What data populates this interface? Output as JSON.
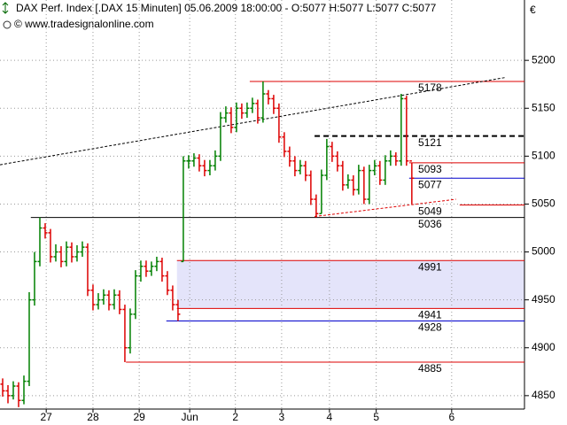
{
  "chart_data": {
    "type": "ohlc",
    "title": "DAX Perf. Index [.DAX  15 Minuten] 05.06.2009 18:00:00 - O:5077 H:5077 L:5077 C:5077",
    "subtitle": "© www.tradesignalonline.com",
    "currency": "€",
    "up_color": "#008000",
    "down_color": "#dd0000",
    "open": [
      4862,
      4855,
      4850,
      4860,
      4845,
      4865,
      4950,
      4990,
      5025,
      5020,
      4995,
      5000,
      4990,
      5005,
      4995,
      5000,
      5005,
      4960,
      4945,
      4950,
      4955,
      4945,
      4955,
      4940,
      4900,
      4935,
      4975,
      4985,
      4980,
      4985,
      4990,
      4975,
      4960,
      4945,
      4990,
      5095,
      5095,
      5098,
      5090,
      5085,
      5090,
      5100,
      5140,
      5145,
      5130,
      5150,
      5145,
      5150,
      5155,
      5140,
      5165,
      5160,
      5150,
      5120,
      5105,
      5095,
      5085,
      5090,
      5080,
      5055,
      5040,
      5080,
      5110,
      5100,
      5090,
      5070,
      5075,
      5065,
      5085,
      5055,
      5085,
      5090,
      5075,
      5095,
      5100,
      5095,
      5160,
      5095
    ],
    "high": [
      4868,
      4861,
      4865,
      4864,
      4871,
      4958,
      5000,
      5036,
      5030,
      5024,
      5008,
      5006,
      5011,
      5010,
      5007,
      5011,
      5009,
      4966,
      4957,
      4961,
      4960,
      4961,
      4960,
      4945,
      4941,
      4981,
      4991,
      4991,
      4990,
      4995,
      4994,
      4980,
      4965,
      4950,
      5100,
      5101,
      5103,
      5102,
      5096,
      5096,
      5106,
      5146,
      5152,
      5151,
      5156,
      5155,
      5156,
      5161,
      5159,
      5178,
      5169,
      5164,
      5155,
      5125,
      5110,
      5100,
      5096,
      5095,
      5085,
      5060,
      5086,
      5118,
      5115,
      5105,
      5095,
      5081,
      5080,
      5091,
      5089,
      5091,
      5096,
      5095,
      5101,
      5106,
      5104,
      5165,
      5163,
      5093
    ],
    "low": [
      4849,
      4842,
      4846,
      4838,
      4841,
      4860,
      4944,
      4985,
      5014,
      4989,
      4990,
      4984,
      4985,
      4989,
      4990,
      4995,
      4954,
      4939,
      4940,
      4945,
      4939,
      4940,
      4935,
      4885,
      4894,
      4930,
      4969,
      4974,
      4975,
      4980,
      4969,
      4955,
      4939,
      4928,
      4990,
      5087,
      5089,
      5084,
      5079,
      5080,
      5085,
      5095,
      5135,
      5124,
      5125,
      5139,
      5140,
      5145,
      5134,
      5135,
      5154,
      5144,
      5114,
      5099,
      5089,
      5079,
      5081,
      5074,
      5049,
      5036,
      5040,
      5075,
      5094,
      5084,
      5064,
      5066,
      5059,
      5060,
      5050,
      5050,
      5080,
      5070,
      5070,
      5090,
      5090,
      5090,
      5090,
      5050
    ],
    "close": [
      4855,
      4850,
      4860,
      4845,
      4865,
      4950,
      4990,
      5025,
      5020,
      4995,
      5000,
      4990,
      5005,
      4995,
      5000,
      5005,
      4960,
      4945,
      4950,
      4955,
      4945,
      4955,
      4940,
      4900,
      4935,
      4975,
      4985,
      4980,
      4985,
      4990,
      4975,
      4960,
      4945,
      4935,
      5095,
      5095,
      5098,
      5090,
      5085,
      5090,
      5100,
      5140,
      5145,
      5130,
      5150,
      5145,
      5150,
      5155,
      5140,
      5165,
      5160,
      5150,
      5120,
      5105,
      5095,
      5085,
      5090,
      5080,
      5055,
      5040,
      5080,
      5110,
      5100,
      5090,
      5070,
      5075,
      5065,
      5085,
      5055,
      5085,
      5090,
      5075,
      5095,
      5100,
      5095,
      5160,
      5095,
      5077
    ],
    "xlim": [
      -0.5,
      98.2
    ],
    "xticks": [
      {
        "value": 8.2,
        "label": "27"
      },
      {
        "value": 17,
        "label": "28"
      },
      {
        "value": 25.7,
        "label": "29"
      },
      {
        "value": 35.2,
        "label": "Jun"
      },
      {
        "value": 43.8,
        "label": "2"
      },
      {
        "value": 52.5,
        "label": "3"
      },
      {
        "value": 61.5,
        "label": "4"
      },
      {
        "value": 70.3,
        "label": "5"
      },
      {
        "value": 84.5,
        "label": "6"
      }
    ],
    "ylim": [
      4836,
      5263
    ],
    "yticks": [
      4850,
      4900,
      4950,
      5000,
      5050,
      5100,
      5150,
      5200
    ],
    "grid": true,
    "levels": [
      {
        "value": 5178,
        "color": "#dd0000",
        "dashed": false,
        "from": 46.5
      },
      {
        "value": 5121,
        "color": "#000000",
        "dashed": true,
        "from": 58.7
      },
      {
        "value": 5093,
        "color": "#dd0000",
        "dashed": false,
        "from": 76.5
      },
      {
        "value": 5077,
        "color": "#0000cc",
        "dashed": false,
        "from": 76.5
      },
      {
        "value": 5049,
        "color": "#dd0000",
        "dashed": false,
        "from": 86
      },
      {
        "value": 5036,
        "color": "#000000",
        "dashed": false,
        "from": 5.3
      },
      {
        "value": 4991,
        "color": "#dd0000",
        "dashed": false,
        "from": 32.8,
        "fill_to_next": "#e4e4fa"
      },
      {
        "value": 4941,
        "color": "#dd0000",
        "dashed": false,
        "from": 32.8
      },
      {
        "value": 4928,
        "color": "#0000cc",
        "dashed": false,
        "from": 30.8
      },
      {
        "value": 4885,
        "color": "#dd0000",
        "dashed": false,
        "from": 23.2
      }
    ],
    "trendlines": [
      {
        "x": [
          -0.5,
          94.5
        ],
        "y": [
          5091,
          5182
        ],
        "color": "#000000"
      },
      {
        "x": [
          58.7,
          85.3
        ],
        "y": [
          5037,
          5055
        ],
        "color": "#dd0000"
      }
    ]
  }
}
